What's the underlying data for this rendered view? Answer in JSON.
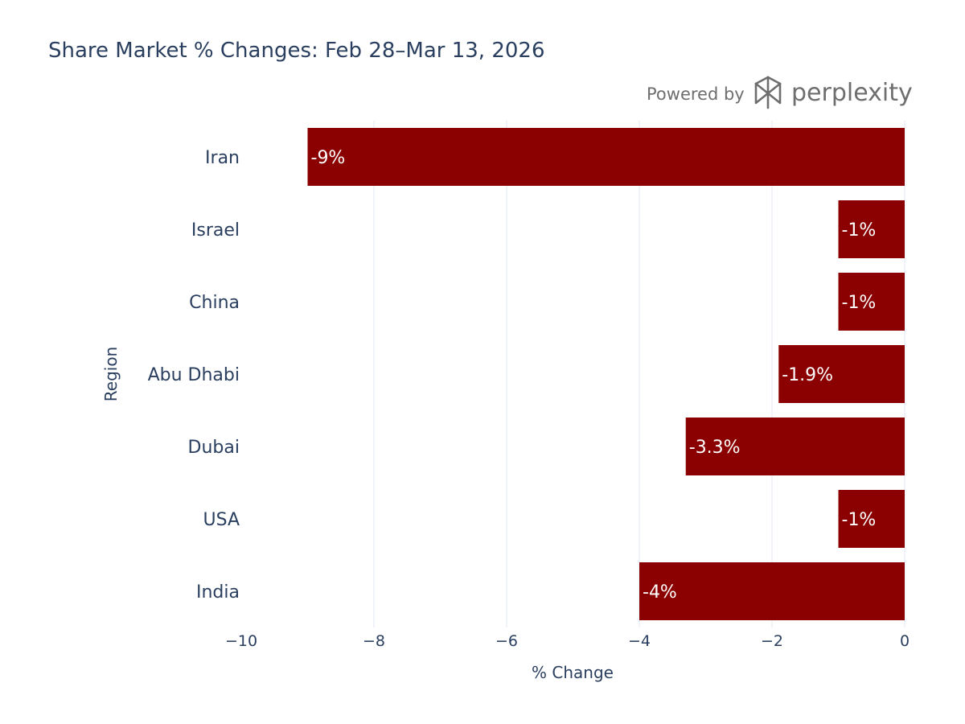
{
  "chart_data": {
    "type": "bar",
    "orientation": "horizontal",
    "title": "Share Market % Changes: Feb 28–Mar 13, 2026",
    "xlabel": "% Change",
    "ylabel": "Region",
    "categories": [
      "Iran",
      "Israel",
      "China",
      "Abu Dhabi",
      "Dubai",
      "USA",
      "India"
    ],
    "values": [
      -9,
      -1,
      -1,
      -1.9,
      -3.3,
      -1,
      -4
    ],
    "data_labels": [
      "-9%",
      "-1%",
      "-1%",
      "-1.9%",
      "-3.3%",
      "-1%",
      "-4%"
    ],
    "xlim": [
      -10,
      0
    ],
    "xticks": [
      -10,
      -8,
      -6,
      -4,
      -2,
      0
    ],
    "xtick_labels": [
      "−10",
      "−8",
      "−6",
      "−4",
      "−2",
      "0"
    ],
    "bar_color": "#8b0000",
    "grid": "vertical",
    "grid_color": "#ebf0f8"
  },
  "watermark": {
    "prefix": "Powered by",
    "brand": "perplexity",
    "color": "#6e6e6e"
  }
}
